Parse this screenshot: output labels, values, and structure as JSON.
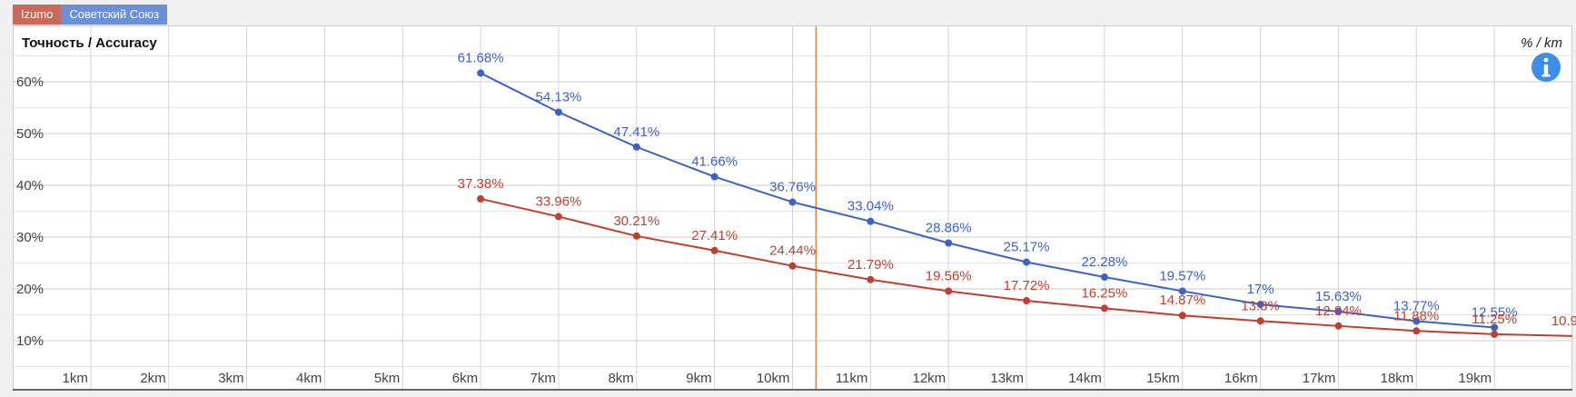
{
  "tabs": [
    {
      "label": "Izumo",
      "color": "#c9695c"
    },
    {
      "label": "Советский Союз",
      "color": "#6d8fd8"
    }
  ],
  "info_icon": "info-icon",
  "chart_data": {
    "type": "line",
    "title": "Точность / Accuracy",
    "unit": "% / km",
    "categories": [
      "1km",
      "2km",
      "3km",
      "4km",
      "5km",
      "6km",
      "7km",
      "8km",
      "9km",
      "10km",
      "11km",
      "12km",
      "13km",
      "14km",
      "15km",
      "16km",
      "17km",
      "18km",
      "19km"
    ],
    "x": [
      6,
      7,
      8,
      9,
      10,
      11,
      12,
      13,
      14,
      15,
      16,
      17,
      18,
      19,
      20
    ],
    "y_ticks": [
      10,
      20,
      30,
      40,
      50,
      60
    ],
    "y_tick_labels": [
      "10%",
      "20%",
      "30%",
      "40%",
      "50%",
      "60%"
    ],
    "ylim": [
      5,
      67
    ],
    "xlim": [
      0,
      20
    ],
    "grid": true,
    "marker_x": 10.3,
    "marker_color": "#e08a4a",
    "series": [
      {
        "name": "Советский Союз",
        "color": "#3d62c7",
        "x": [
          6,
          7,
          8,
          9,
          10,
          11,
          12,
          13,
          14,
          15,
          16,
          17,
          18,
          19
        ],
        "values": [
          61.68,
          54.13,
          47.41,
          41.66,
          36.76,
          33.04,
          28.86,
          25.17,
          22.28,
          19.57,
          17,
          15.63,
          13.77,
          12.55
        ],
        "labels": [
          "61.68%",
          "54.13%",
          "47.41%",
          "41.66%",
          "36.76%",
          "33.04%",
          "28.86%",
          "25.17%",
          "22.28%",
          "19.57%",
          "17%",
          "15.63%",
          "13.77%",
          "12.55%"
        ]
      },
      {
        "name": "Izumo",
        "color": "#c0402e",
        "x": [
          6,
          7,
          8,
          9,
          10,
          11,
          12,
          13,
          14,
          15,
          16,
          17,
          18,
          19,
          20
        ],
        "values": [
          37.38,
          33.96,
          30.21,
          27.41,
          24.44,
          21.79,
          19.56,
          17.72,
          16.25,
          14.87,
          13.8,
          12.84,
          11.88,
          11.25,
          10.9
        ],
        "labels": [
          "37.38%",
          "33.96%",
          "30.21%",
          "27.41%",
          "24.44%",
          "21.79%",
          "19.56%",
          "17.72%",
          "16.25%",
          "14.87%",
          "13.8%",
          "12.84%",
          "11.88%",
          "11.25%",
          "10.9"
        ]
      }
    ]
  }
}
